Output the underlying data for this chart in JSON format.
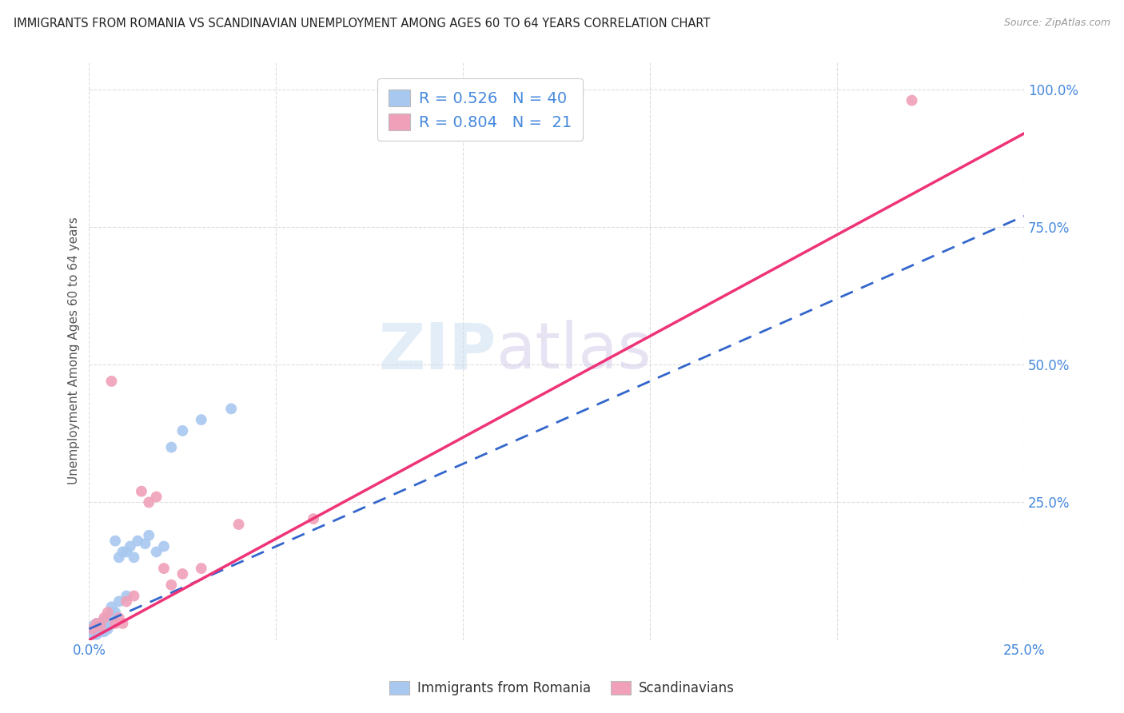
{
  "title": "IMMIGRANTS FROM ROMANIA VS SCANDINAVIAN UNEMPLOYMENT AMONG AGES 60 TO 64 YEARS CORRELATION CHART",
  "source": "Source: ZipAtlas.com",
  "ylabel": "Unemployment Among Ages 60 to 64 years",
  "xlim": [
    0.0,
    0.25
  ],
  "ylim": [
    0.0,
    1.05
  ],
  "x_ticks": [
    0.0,
    0.05,
    0.1,
    0.15,
    0.2,
    0.25
  ],
  "x_tick_labels": [
    "0.0%",
    "",
    "",
    "",
    "",
    "25.0%"
  ],
  "y_ticks": [
    0.0,
    0.25,
    0.5,
    0.75,
    1.0
  ],
  "y_tick_labels": [
    "",
    "25.0%",
    "50.0%",
    "75.0%",
    "100.0%"
  ],
  "watermark_zip": "ZIP",
  "watermark_atlas": "atlas",
  "legend_label1": "R = 0.526   N = 40",
  "legend_label2": "R = 0.804   N =  21",
  "blue_color": "#a8c8f0",
  "pink_color": "#f0a0b8",
  "blue_line_color": "#3366cc",
  "pink_line_color": "#ee3377",
  "label1": "Immigrants from Romania",
  "label2": "Scandinavians",
  "romania_x": [
    0.001,
    0.001,
    0.001,
    0.002,
    0.002,
    0.002,
    0.002,
    0.002,
    0.003,
    0.003,
    0.003,
    0.003,
    0.004,
    0.004,
    0.004,
    0.004,
    0.005,
    0.005,
    0.005,
    0.006,
    0.006,
    0.006,
    0.007,
    0.007,
    0.008,
    0.008,
    0.009,
    0.01,
    0.01,
    0.011,
    0.012,
    0.013,
    0.015,
    0.016,
    0.018,
    0.02,
    0.022,
    0.025,
    0.03,
    0.038
  ],
  "romania_y": [
    0.02,
    0.025,
    0.01,
    0.02,
    0.015,
    0.03,
    0.02,
    0.01,
    0.025,
    0.02,
    0.015,
    0.03,
    0.035,
    0.02,
    0.025,
    0.015,
    0.04,
    0.03,
    0.02,
    0.05,
    0.04,
    0.06,
    0.18,
    0.05,
    0.07,
    0.15,
    0.16,
    0.08,
    0.16,
    0.17,
    0.15,
    0.18,
    0.175,
    0.19,
    0.16,
    0.17,
    0.35,
    0.38,
    0.4,
    0.42
  ],
  "scand_x": [
    0.001,
    0.002,
    0.003,
    0.004,
    0.005,
    0.006,
    0.007,
    0.008,
    0.009,
    0.01,
    0.012,
    0.014,
    0.016,
    0.018,
    0.02,
    0.022,
    0.025,
    0.03,
    0.04,
    0.06,
    0.22
  ],
  "scand_y": [
    0.02,
    0.03,
    0.025,
    0.04,
    0.05,
    0.47,
    0.03,
    0.04,
    0.03,
    0.07,
    0.08,
    0.27,
    0.25,
    0.26,
    0.13,
    0.1,
    0.12,
    0.13,
    0.21,
    0.22,
    0.98
  ],
  "blue_line_x": [
    0.0,
    0.25
  ],
  "blue_line_y": [
    0.02,
    0.77
  ],
  "pink_line_x": [
    0.0,
    0.25
  ],
  "pink_line_y": [
    0.0,
    0.92
  ],
  "background_color": "#ffffff",
  "grid_color": "#dddddd",
  "title_color": "#222222",
  "axis_label_color": "#555555",
  "tick_color_y": "#4488dd",
  "tick_color_x": "#4488dd"
}
